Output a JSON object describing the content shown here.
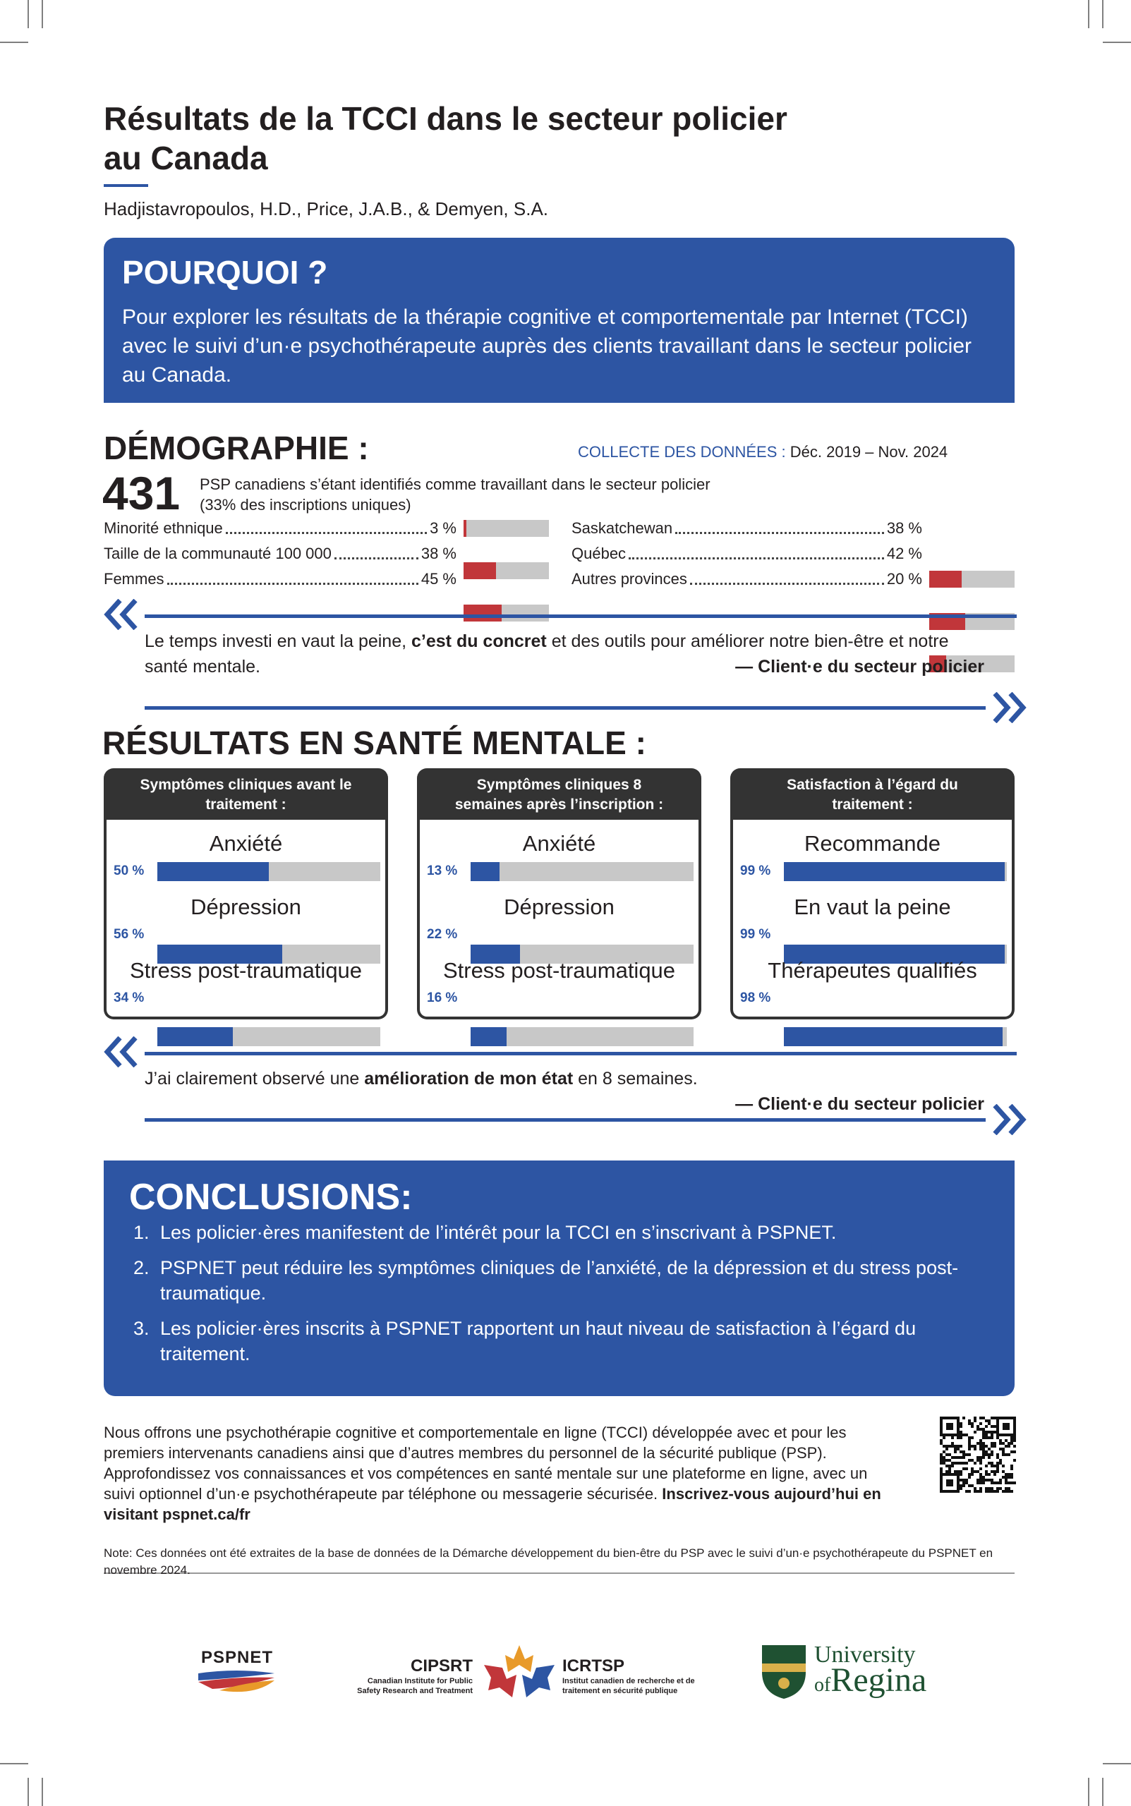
{
  "header": {
    "title_line1": "Résultats de la TCCI dans le secteur policier",
    "title_line2": "au Canada",
    "authors": "Hadjistavropoulos, H.D., Price, J.A.B., & Demyen, S.A."
  },
  "why": {
    "heading": "POURQUOI ?",
    "text": "Pour explorer les résultats de la thérapie cognitive et comportementale par Internet (TCCI) avec le suivi d’un·e psychothérapeute auprès des clients travaillant dans le secteur policier au Canada."
  },
  "demographics": {
    "heading": "DÉMOGRAPHIE :",
    "collection_label": "COLLECTE DES DONNÉES :",
    "collection_period": "Déc. 2019 – Nov. 2024",
    "count": 431,
    "count_text": "PSP canadiens s’étant identifiés comme travaillant dans le secteur policier",
    "count_note": "(33% des inscriptions uniques)",
    "left": [
      {
        "label": "Minorité ethnique",
        "value": 3,
        "value_label": "3 %"
      },
      {
        "label": "Taille de la communauté 100 000",
        "value": 38,
        "value_label": "38 %"
      },
      {
        "label": "Femmes",
        "value": 45,
        "value_label": "45 %"
      }
    ],
    "right": [
      {
        "label": "Saskatchewan",
        "value": 38,
        "value_label": "38 %"
      },
      {
        "label": "Québec",
        "value": 42,
        "value_label": "42 %"
      },
      {
        "label": "Autres provinces",
        "value": 20,
        "value_label": "20 %"
      }
    ]
  },
  "quote1": {
    "before": "Le temps investi en vaut la peine, ",
    "emphasis": "c’est du concret",
    "after": " et des outils pour améliorer notre bien-être et notre santé mentale.",
    "source": "— Client·e du secteur policier"
  },
  "results": {
    "heading": "RÉSULTATS EN SANTÉ MENTALE :",
    "panels": [
      {
        "header": "Symptômes cliniques avant le traitement :",
        "items": [
          {
            "label": "Anxiété",
            "value": 50,
            "value_label": "50 %"
          },
          {
            "label": "Dépression",
            "value": 56,
            "value_label": "56 %"
          },
          {
            "label": "Stress post-traumatique",
            "value": 34,
            "value_label": "34 %"
          }
        ]
      },
      {
        "header": "Symptômes cliniques 8 semaines après l’inscription :",
        "items": [
          {
            "label": "Anxiété",
            "value": 13,
            "value_label": "13 %"
          },
          {
            "label": "Dépression",
            "value": 22,
            "value_label": "22 %"
          },
          {
            "label": "Stress post-traumatique",
            "value": 16,
            "value_label": "16 %"
          }
        ]
      },
      {
        "header": "Satisfaction à l’égard du traitement :",
        "items": [
          {
            "label": "Recommande",
            "value": 99,
            "value_label": "99 %"
          },
          {
            "label": "En vaut la peine",
            "value": 99,
            "value_label": "99 %"
          },
          {
            "label": "Thérapeutes qualifiés",
            "value": 98,
            "value_label": "98 %"
          }
        ]
      }
    ]
  },
  "quote2": {
    "before": "J’ai clairement observé une ",
    "emphasis": "amélioration de mon état",
    "after": " en 8 semaines.",
    "source": "— Client·e du secteur policier"
  },
  "conclusions": {
    "heading": "CONCLUSIONS:",
    "items": [
      "Les policier·ères manifestent de l’intérêt pour la TCCI en s’inscrivant à PSPNET.",
      "PSPNET peut réduire les symptômes cliniques de l’anxiété, de la dépression et du stress post-traumatique.",
      "Les policier·ères inscrits à PSPNET rapportent un haut niveau de satisfaction à l’égard du traitement."
    ]
  },
  "footer": {
    "text": "Nous offrons une psychothérapie cognitive et comportementale en ligne (TCCI) développée avec et pour les premiers intervenants canadiens ainsi que d’autres membres du personnel de la sécurité publique (PSP). Approfondissez vos connaissances et vos compétences en santé mentale sur une plateforme en ligne, avec un suivi optionnel d’un·e psychothérapeute par téléphone ou messagerie sécurisée. ",
    "cta": "Inscrivez-vous aujourd’hui en visitant pspnet.ca/fr",
    "note": "Note: Ces données ont été extraites de la base de données de la Démarche développement du bien-être du PSP avec le suivi d’un·e psychothérapeute du PSPNET en novembre 2024."
  },
  "logos": {
    "pspnet": "PSPNET",
    "cipsrt": "CIPSRT",
    "cipsrt_name": "Canadian Institute for Public Safety Research and Treatment",
    "icrtsp": "ICRTSP",
    "icrtsp_name": "Institut canadien de recherche et de traitement en sécurité publique",
    "uni1": "University",
    "uni2": "of",
    "uni3": "Regina"
  }
}
